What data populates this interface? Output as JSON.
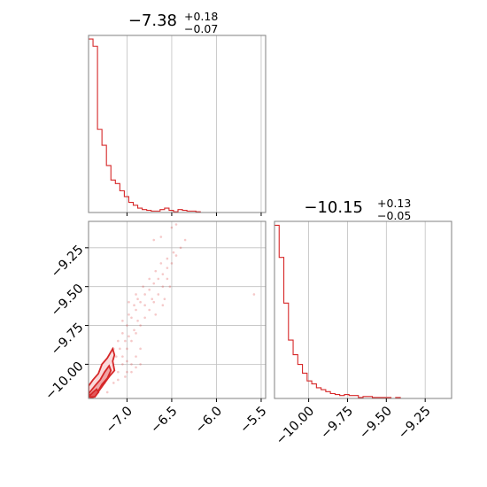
{
  "colors": {
    "series": "#d62728",
    "frame": "#808080",
    "grid": "#c0c0c0",
    "text": "#000000"
  },
  "chart_data": [
    {
      "type": "histogram",
      "panel": "top-left",
      "title": {
        "value": "−7.38",
        "upper": "+0.18",
        "lower": "−0.07"
      },
      "xlim": [
        -7.43,
        -5.45
      ],
      "xticks": [
        -7.0,
        -6.5,
        -6.0,
        -5.5
      ],
      "xtick_labels_shown": false,
      "yticks_shown": false,
      "grid": true,
      "bin_edges": [
        -7.43,
        -7.38,
        -7.33,
        -7.28,
        -7.23,
        -7.18,
        -7.13,
        -7.08,
        -7.03,
        -6.98,
        -6.93,
        -6.88,
        -6.83,
        -6.78,
        -6.73,
        -6.68,
        -6.63,
        -6.58,
        -6.53,
        -6.48,
        -6.43,
        -6.38,
        -6.33,
        -6.28,
        -6.23,
        -6.18,
        -6.13,
        -6.08,
        -6.03,
        -5.98,
        -5.93,
        -5.88,
        -5.83,
        -5.78,
        -5.73,
        -5.68,
        -5.63,
        -5.58,
        -5.53,
        -5.48,
        -5.45
      ],
      "counts": [
        240,
        230,
        115,
        93,
        65,
        45,
        40,
        30,
        22,
        14,
        10,
        6,
        4,
        3,
        2,
        2,
        4,
        6,
        3,
        1,
        4,
        3,
        2,
        2,
        1,
        0,
        0,
        0,
        0,
        0,
        0,
        0,
        0,
        0,
        0,
        0,
        0,
        0,
        0,
        0
      ],
      "ylim": [
        0,
        245
      ]
    },
    {
      "type": "scatter",
      "panel": "bottom-left",
      "xlim": [
        -7.43,
        -5.45
      ],
      "ylim": [
        -10.22,
        -9.08
      ],
      "xticks": [
        -7.0,
        -6.5,
        -6.0,
        -5.5
      ],
      "xtick_labels": [
        "−7.0",
        "−6.5",
        "−6.0",
        "−5.5"
      ],
      "yticks": [
        -9.25,
        -9.5,
        -9.75,
        -10.0
      ],
      "ytick_labels": [
        "−9.25",
        "−9.50",
        "−9.75",
        "−10.00"
      ],
      "grid": true,
      "points": [
        [
          -7.35,
          -10.15
        ],
        [
          -7.3,
          -10.1
        ],
        [
          -7.28,
          -10.05
        ],
        [
          -7.25,
          -10.0
        ],
        [
          -7.2,
          -9.98
        ],
        [
          -7.15,
          -9.9
        ],
        [
          -7.1,
          -9.85
        ],
        [
          -7.05,
          -9.8
        ],
        [
          -7.0,
          -9.75
        ],
        [
          -6.95,
          -9.7
        ],
        [
          -6.9,
          -9.65
        ],
        [
          -6.85,
          -9.6
        ],
        [
          -6.8,
          -9.55
        ],
        [
          -6.75,
          -9.52
        ],
        [
          -6.7,
          -9.48
        ],
        [
          -6.65,
          -9.45
        ],
        [
          -6.6,
          -9.42
        ],
        [
          -6.55,
          -9.38
        ],
        [
          -6.5,
          -9.35
        ],
        [
          -6.45,
          -9.3
        ],
        [
          -7.3,
          -10.15
        ],
        [
          -7.25,
          -10.12
        ],
        [
          -7.2,
          -10.08
        ],
        [
          -7.18,
          -10.02
        ],
        [
          -7.12,
          -9.95
        ],
        [
          -7.08,
          -9.9
        ],
        [
          -7.02,
          -9.85
        ],
        [
          -6.98,
          -9.82
        ],
        [
          -6.92,
          -9.78
        ],
        [
          -6.88,
          -9.72
        ],
        [
          -7.0,
          -9.9
        ],
        [
          -6.95,
          -9.85
        ],
        [
          -6.9,
          -9.8
        ],
        [
          -6.85,
          -9.75
        ],
        [
          -6.8,
          -9.7
        ],
        [
          -6.75,
          -9.65
        ],
        [
          -6.7,
          -9.6
        ],
        [
          -6.65,
          -9.55
        ],
        [
          -6.6,
          -9.5
        ],
        [
          -6.55,
          -9.45
        ],
        [
          -7.05,
          -10.0
        ],
        [
          -7.0,
          -10.05
        ],
        [
          -6.95,
          -10.0
        ],
        [
          -6.9,
          -9.95
        ],
        [
          -6.85,
          -9.9
        ],
        [
          -7.22,
          -10.18
        ],
        [
          -7.15,
          -10.12
        ],
        [
          -7.1,
          -10.05
        ],
        [
          -7.05,
          -9.95
        ],
        [
          -7.0,
          -9.98
        ],
        [
          -6.98,
          -9.6
        ],
        [
          -6.9,
          -9.55
        ],
        [
          -6.82,
          -9.5
        ],
        [
          -6.75,
          -9.45
        ],
        [
          -6.68,
          -9.4
        ],
        [
          -6.62,
          -9.35
        ],
        [
          -6.55,
          -9.32
        ],
        [
          -6.48,
          -9.28
        ],
        [
          -6.4,
          -9.25
        ],
        [
          -6.35,
          -9.2
        ],
        [
          -6.7,
          -9.2
        ],
        [
          -6.62,
          -9.18
        ],
        [
          -6.5,
          -9.12
        ],
        [
          -6.45,
          -9.1
        ],
        [
          -5.58,
          -9.55
        ],
        [
          -7.05,
          -9.72
        ],
        [
          -6.98,
          -9.68
        ],
        [
          -6.92,
          -9.62
        ],
        [
          -6.88,
          -9.58
        ],
        [
          -6.8,
          -9.62
        ],
        [
          -6.72,
          -9.58
        ],
        [
          -6.68,
          -9.68
        ],
        [
          -6.6,
          -9.62
        ],
        [
          -6.58,
          -9.58
        ],
        [
          -6.52,
          -9.5
        ],
        [
          -7.1,
          -10.1
        ],
        [
          -7.02,
          -10.08
        ],
        [
          -6.95,
          -10.05
        ],
        [
          -6.9,
          -10.02
        ],
        [
          -6.85,
          -10.0
        ],
        [
          -7.35,
          -10.2
        ],
        [
          -7.32,
          -10.18
        ],
        [
          -7.28,
          -10.12
        ],
        [
          -7.24,
          -10.1
        ],
        [
          -7.2,
          -10.05
        ]
      ],
      "contours": [
        [
          [
            -7.43,
            -10.2
          ],
          [
            -7.43,
            -10.14
          ],
          [
            -7.38,
            -10.1
          ],
          [
            -7.32,
            -10.06
          ],
          [
            -7.28,
            -10.0
          ],
          [
            -7.22,
            -9.96
          ],
          [
            -7.16,
            -9.9
          ],
          [
            -7.14,
            -9.94
          ],
          [
            -7.16,
            -9.98
          ],
          [
            -7.14,
            -10.04
          ],
          [
            -7.2,
            -10.08
          ],
          [
            -7.25,
            -10.12
          ],
          [
            -7.3,
            -10.16
          ],
          [
            -7.35,
            -10.2
          ],
          [
            -7.4,
            -10.22
          ]
        ],
        [
          [
            -7.43,
            -10.19
          ],
          [
            -7.36,
            -10.14
          ],
          [
            -7.3,
            -10.1
          ],
          [
            -7.25,
            -10.05
          ],
          [
            -7.2,
            -10.01
          ],
          [
            -7.18,
            -10.04
          ],
          [
            -7.22,
            -10.09
          ],
          [
            -7.28,
            -10.13
          ],
          [
            -7.33,
            -10.18
          ],
          [
            -7.38,
            -10.21
          ]
        ],
        [
          [
            -7.43,
            -10.21
          ],
          [
            -7.38,
            -10.18
          ],
          [
            -7.34,
            -10.16
          ],
          [
            -7.32,
            -10.18
          ],
          [
            -7.36,
            -10.21
          ]
        ]
      ],
      "contour_fills": [
        "#fadadb",
        "#f0a5a6",
        "#e2585a"
      ]
    },
    {
      "type": "histogram",
      "panel": "bottom-right",
      "title": {
        "value": "−10.15",
        "upper": "+0.13",
        "lower": "−0.05"
      },
      "xlim": [
        -10.22,
        -9.08
      ],
      "xticks": [
        -10.0,
        -9.75,
        -9.5,
        -9.25
      ],
      "xtick_labels": [
        "−10.00",
        "−9.75",
        "−9.50",
        "−9.25"
      ],
      "yticks_shown": false,
      "grid": true,
      "bin_edges": [
        -10.22,
        -10.19,
        -10.16,
        -10.13,
        -10.1,
        -10.07,
        -10.04,
        -10.01,
        -9.98,
        -9.95,
        -9.92,
        -9.89,
        -9.86,
        -9.83,
        -9.8,
        -9.77,
        -9.74,
        -9.71,
        -9.68,
        -9.65,
        -9.62,
        -9.59,
        -9.56,
        -9.53,
        -9.5,
        -9.47,
        -9.44,
        -9.41,
        -9.38,
        -9.35,
        -9.32,
        -9.29,
        -9.26,
        -9.23,
        -9.2,
        -9.17,
        -9.14,
        -9.11,
        -9.08
      ],
      "counts": [
        178,
        145,
        98,
        60,
        45,
        35,
        26,
        18,
        15,
        11,
        9,
        7,
        5,
        4,
        3,
        4,
        3,
        3,
        1,
        2,
        2,
        1,
        1,
        1,
        1,
        0,
        1,
        0,
        0,
        0,
        0,
        0,
        0,
        0,
        0,
        0,
        0,
        0
      ],
      "ylim": [
        0,
        182
      ]
    }
  ]
}
